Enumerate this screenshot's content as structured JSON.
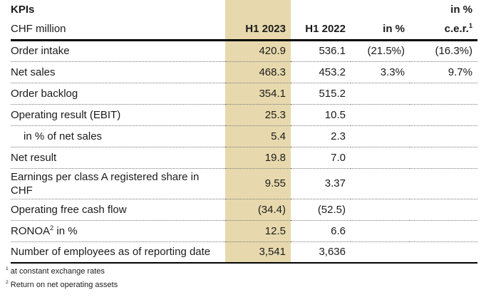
{
  "page": {
    "title": "KPIs",
    "top_right_label": "in %",
    "unit_label": "CHF million"
  },
  "table": {
    "columns": [
      {
        "label": "H1 2023"
      },
      {
        "label": "H1 2022"
      },
      {
        "label": "in %"
      },
      {
        "label": "c.e.r.",
        "sup": "1"
      }
    ],
    "rows": [
      {
        "label": "Order intake",
        "values": [
          "420.9",
          "536.1",
          "(21.5%)",
          "(16.3%)"
        ]
      },
      {
        "label": "Net sales",
        "values": [
          "468.3",
          "453.2",
          "3.3%",
          "9.7%"
        ]
      },
      {
        "label": "Order backlog",
        "values": [
          "354.1",
          "515.2",
          "",
          ""
        ]
      },
      {
        "label": "Operating result (EBIT)",
        "values": [
          "25.3",
          "10.5",
          "",
          ""
        ]
      },
      {
        "label": "in % of net sales",
        "indent": true,
        "values": [
          "5.4",
          "2.3",
          "",
          ""
        ]
      },
      {
        "label": "Net result",
        "values": [
          "19.8",
          "7.0",
          "",
          ""
        ]
      },
      {
        "label": "Earnings per class A registered share in CHF",
        "values": [
          "9.55",
          "3.37",
          "",
          ""
        ]
      },
      {
        "label": "Operating free cash flow",
        "values": [
          "(34.4)",
          "(52.5)",
          "",
          ""
        ]
      },
      {
        "label": "RONOA",
        "label_sup": "2",
        "label_suffix": " in %",
        "values": [
          "12.5",
          "6.6",
          "",
          ""
        ]
      },
      {
        "label": "Number of employees as of reporting date",
        "values": [
          "3,541",
          "3,636",
          "",
          ""
        ]
      }
    ]
  },
  "footnotes": [
    {
      "sup": "1",
      "text": "at constant exchange rates"
    },
    {
      "sup": "2",
      "text": "Return on net operating assets"
    }
  ],
  "colors": {
    "highlight_column": "#e7d9ad",
    "text": "#1b1b1b",
    "rule": "#000000",
    "background": "#ffffff"
  }
}
